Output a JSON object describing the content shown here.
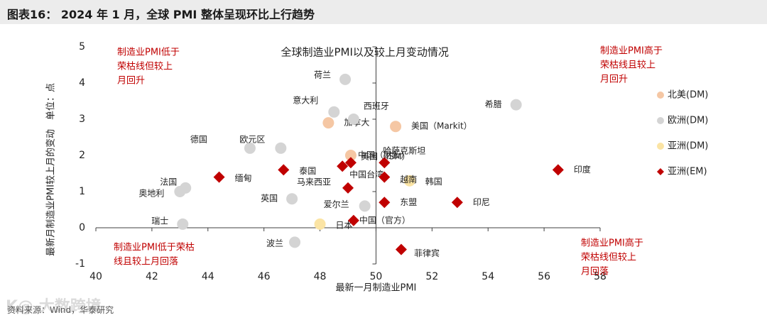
{
  "figure": {
    "title": "图表16： 2024 年 1 月，全球 PMI 整体呈现环比上行趋势",
    "source": "资料来源：Wind，华泰研究",
    "watermark": "K@ 大数跨境"
  },
  "colors": {
    "dm_north_america": "#f5c7a4",
    "dm_europe": "#d4d4d4",
    "dm_asia": "#fbe4a4",
    "em_asia": "#c00000",
    "annotation_red": "#c00000",
    "axis": "#404040"
  },
  "chart_data": {
    "type": "scatter",
    "title": "全球制造业PMI以及较上月变动情况",
    "xlabel": "最新一月制造业PMI",
    "ylabel": "最新月制造业PMI较上月的变动　单位：点",
    "xlim": [
      40,
      58
    ],
    "ylim": [
      -1,
      5
    ],
    "xticks": [
      40,
      42,
      44,
      46,
      48,
      50,
      52,
      54,
      56,
      58
    ],
    "yticks": [
      -1,
      0,
      1,
      2,
      3,
      4,
      5
    ],
    "x_cross": 50,
    "y_cross": 0,
    "grid": false,
    "legend_position": "right",
    "quadrant_labels": {
      "top_left": "制造业PMI低于\n荣枯线但较上\n月回升",
      "top_right": "制造业PMI高于\n荣枯线且较上\n月回升",
      "bottom_left": "制造业PMI低于荣枯\n线且较上月回落",
      "bottom_right": "制造业PMI高于\n荣枯线但较上\n月回落"
    },
    "series": [
      {
        "name": "北美(DM)",
        "marker": "circle",
        "color": "#f5c7a4",
        "points": [
          {
            "label": "美国（Markit）",
            "x": 50.7,
            "y": 2.8
          },
          {
            "label": "美国（ISM）",
            "x": 49.1,
            "y": 2.0
          },
          {
            "label": "加拿大",
            "x": 48.3,
            "y": 2.9
          }
        ]
      },
      {
        "name": "欧洲(DM)",
        "marker": "circle",
        "color": "#d4d4d4",
        "points": [
          {
            "label": "希腊",
            "x": 55.0,
            "y": 3.4
          },
          {
            "label": "荷兰",
            "x": 48.9,
            "y": 4.1
          },
          {
            "label": "意大利",
            "x": 48.5,
            "y": 3.2
          },
          {
            "label": "西班牙",
            "x": 49.2,
            "y": 3.0
          },
          {
            "label": "德国",
            "x": 45.5,
            "y": 2.2
          },
          {
            "label": "欧元区",
            "x": 46.6,
            "y": 2.2
          },
          {
            "label": "法国",
            "x": 43.2,
            "y": 1.1
          },
          {
            "label": "奥地利",
            "x": 43.0,
            "y": 1.0
          },
          {
            "label": "瑞士",
            "x": 43.1,
            "y": 0.1
          },
          {
            "label": "英国",
            "x": 47.0,
            "y": 0.8
          },
          {
            "label": "爱尔兰",
            "x": 49.6,
            "y": 0.6
          },
          {
            "label": "波兰",
            "x": 47.1,
            "y": -0.4
          }
        ]
      },
      {
        "name": "亚洲(DM)",
        "marker": "circle",
        "color": "#fbe4a4",
        "points": [
          {
            "label": "日本",
            "x": 48.0,
            "y": 0.1
          },
          {
            "label": "韩国",
            "x": 51.2,
            "y": 1.3
          }
        ]
      },
      {
        "name": "亚洲(EM)",
        "marker": "diamond",
        "color": "#c00000",
        "points": [
          {
            "label": "印度",
            "x": 56.5,
            "y": 1.6
          },
          {
            "label": "缅甸",
            "x": 44.4,
            "y": 1.4
          },
          {
            "label": "泰国",
            "x": 46.7,
            "y": 1.6
          },
          {
            "label": "中国台湾",
            "x": 48.8,
            "y": 1.7
          },
          {
            "label": "哈萨克斯坦",
            "x": 50.3,
            "y": 1.8
          },
          {
            "label": "越南",
            "x": 50.3,
            "y": 1.4
          },
          {
            "label": "马来西亚",
            "x": 49.0,
            "y": 1.1
          },
          {
            "label": "东盟",
            "x": 50.3,
            "y": 0.7
          },
          {
            "label": "印尼",
            "x": 52.9,
            "y": 0.7
          },
          {
            "label": "中国（官方）",
            "x": 49.2,
            "y": 0.2
          },
          {
            "label": "菲律宾",
            "x": 50.9,
            "y": -0.6
          },
          {
            "label": "中国（财新）",
            "x": 49.1,
            "y": 1.8
          }
        ]
      }
    ]
  }
}
